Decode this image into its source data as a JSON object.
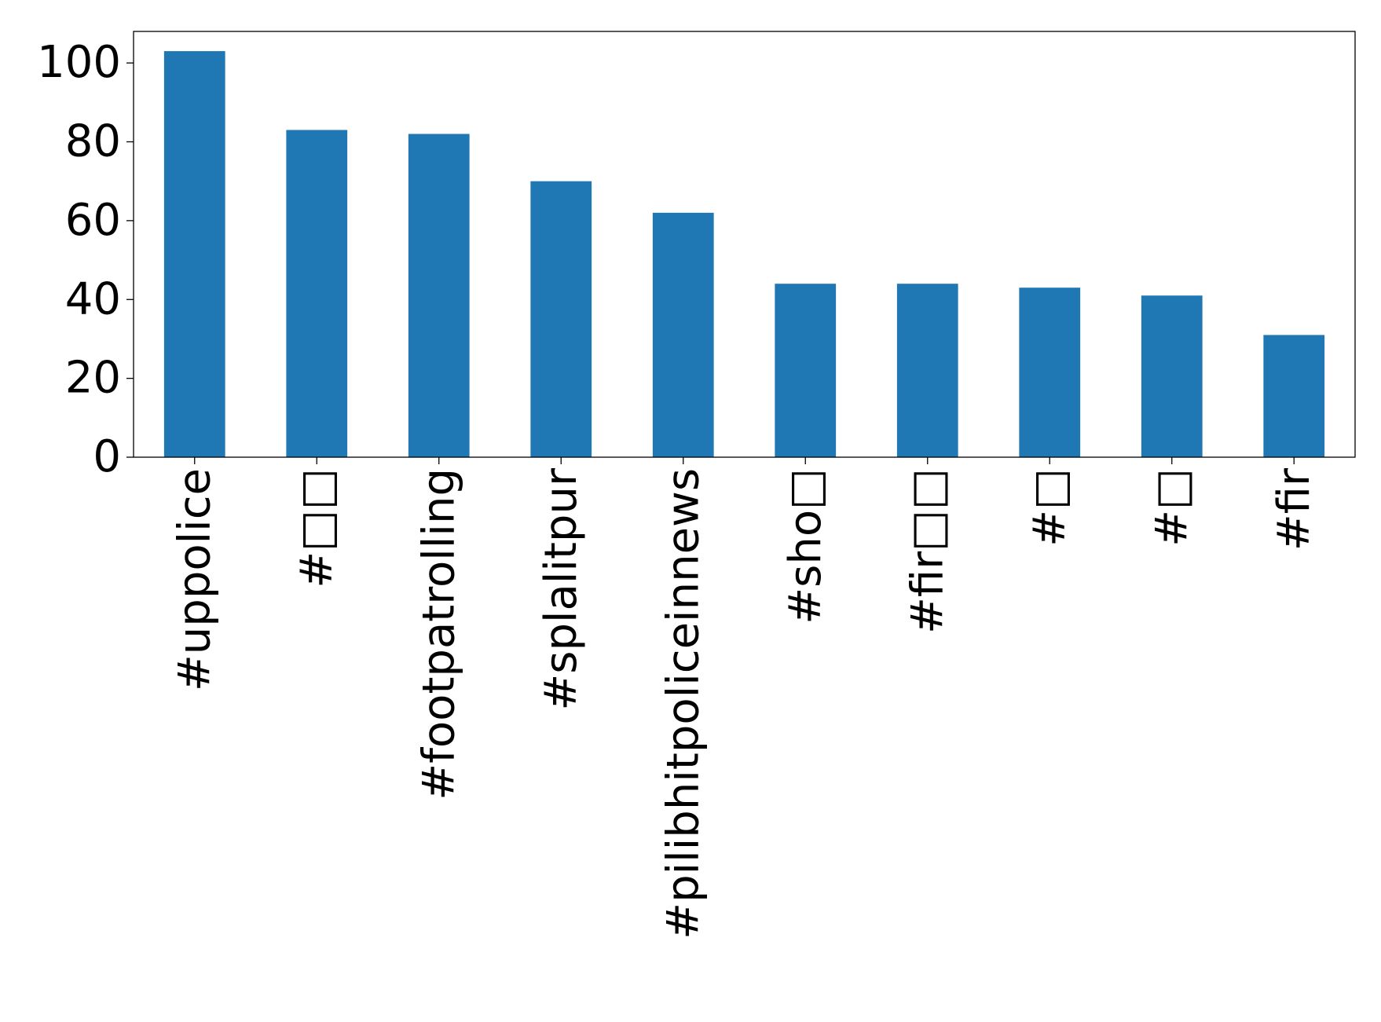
{
  "chart_data": {
    "type": "bar",
    "title": "",
    "xlabel": "",
    "ylabel": "",
    "categories": [
      "#uppolice",
      "#□□",
      "#footpatrolling",
      "#splalitpur",
      "#pilibhitpoliceinnews",
      "#sho□",
      "#fir□□",
      "#□",
      "#□",
      "#fir"
    ],
    "values": [
      103,
      83,
      82,
      70,
      62,
      44,
      44,
      43,
      41,
      31
    ],
    "ylim": [
      0,
      108
    ],
    "yticks": [
      0,
      20,
      40,
      60,
      80,
      100
    ],
    "bar_color": "#1f77b4",
    "grid": false,
    "legend": "none",
    "xtick_rotation": 90
  }
}
